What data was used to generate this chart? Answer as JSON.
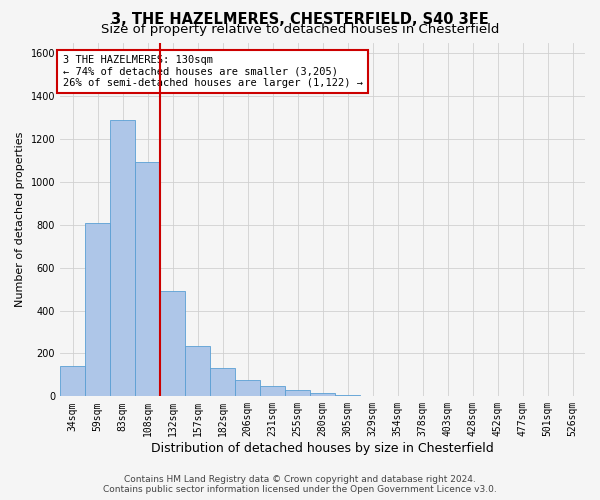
{
  "title": "3, THE HAZELMERES, CHESTERFIELD, S40 3FE",
  "subtitle": "Size of property relative to detached houses in Chesterfield",
  "xlabel": "Distribution of detached houses by size in Chesterfield",
  "ylabel": "Number of detached properties",
  "footnote1": "Contains HM Land Registry data © Crown copyright and database right 2024.",
  "footnote2": "Contains public sector information licensed under the Open Government Licence v3.0.",
  "bar_labels": [
    "34sqm",
    "59sqm",
    "83sqm",
    "108sqm",
    "132sqm",
    "157sqm",
    "182sqm",
    "206sqm",
    "231sqm",
    "255sqm",
    "280sqm",
    "305sqm",
    "329sqm",
    "354sqm",
    "378sqm",
    "403sqm",
    "428sqm",
    "452sqm",
    "477sqm",
    "501sqm",
    "526sqm"
  ],
  "bar_values": [
    140,
    810,
    1290,
    1095,
    490,
    235,
    130,
    75,
    50,
    28,
    15,
    8,
    0,
    0,
    0,
    0,
    0,
    0,
    0,
    0,
    0
  ],
  "bar_color": "#aec6e8",
  "bar_edge_color": "#5a9fd4",
  "grid_color": "#d0d0d0",
  "annotation_line1": "3 THE HAZELMERES: 130sqm",
  "annotation_line2": "← 74% of detached houses are smaller (3,205)",
  "annotation_line3": "26% of semi-detached houses are larger (1,122) →",
  "annotation_box_facecolor": "#ffffff",
  "annotation_box_edgecolor": "#cc0000",
  "vline_color": "#cc0000",
  "vline_x": 3.5,
  "ylim_max": 1650,
  "yticks": [
    0,
    200,
    400,
    600,
    800,
    1000,
    1200,
    1400,
    1600
  ],
  "background_color": "#f5f5f5",
  "title_fontsize": 10.5,
  "subtitle_fontsize": 9.5,
  "xlabel_fontsize": 9,
  "ylabel_fontsize": 8,
  "tick_fontsize": 7,
  "footnote_fontsize": 6.5,
  "annot_fontsize": 7.5
}
